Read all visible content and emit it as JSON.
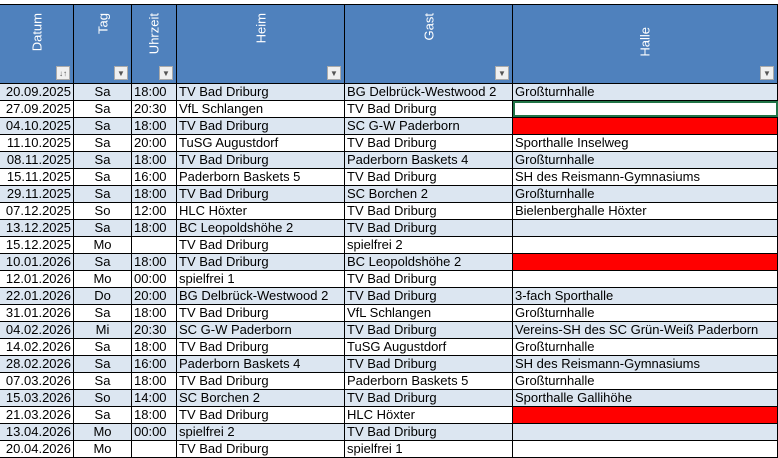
{
  "colors": {
    "header": "#4f81bd",
    "band": "#dce6f1",
    "missing_hall": "#ff0000",
    "selection": "#217346"
  },
  "headers": [
    {
      "label": "Datum",
      "filter": "sort-ascending-filter-icon",
      "glyph": "↓↑"
    },
    {
      "label": "Tag",
      "filter": "dropdown-filter-icon",
      "glyph": "▼"
    },
    {
      "label": "Uhrzeit",
      "filter": "dropdown-filter-icon",
      "glyph": "▼"
    },
    {
      "label": "Heim",
      "filter": "dropdown-filter-icon",
      "glyph": "▼"
    },
    {
      "label": "Gast",
      "filter": "dropdown-filter-icon",
      "glyph": "▼"
    },
    {
      "label": "Halle",
      "filter": "dropdown-filter-icon",
      "glyph": "▼"
    }
  ],
  "rows": [
    [
      "20.09.2025",
      "Sa",
      "18:00",
      "TV Bad Driburg",
      "BG Delbrück-Westwood 2",
      "Großturnhalle"
    ],
    [
      "27.09.2025",
      "Sa",
      "20:30",
      "VfL Schlangen",
      "TV Bad Driburg",
      ""
    ],
    [
      "04.10.2025",
      "Sa",
      "18:00",
      "TV Bad Driburg",
      "SC G-W Paderborn",
      ""
    ],
    [
      "11.10.2025",
      "Sa",
      "20:00",
      "TuSG Augustdorf",
      "TV Bad Driburg",
      "Sporthalle Inselweg"
    ],
    [
      "08.11.2025",
      "Sa",
      "18:00",
      "TV Bad Driburg",
      "Paderborn Baskets 4",
      "Großturnhalle"
    ],
    [
      "15.11.2025",
      "Sa",
      "16:00",
      "Paderborn Baskets 5",
      "TV Bad Driburg",
      "SH des Reismann-Gymnasiums"
    ],
    [
      "29.11.2025",
      "Sa",
      "18:00",
      "TV Bad Driburg",
      "SC Borchen 2",
      "Großturnhalle"
    ],
    [
      "07.12.2025",
      "So",
      "12:00",
      "HLC Höxter",
      "TV Bad Driburg",
      "Bielenberghalle Höxter"
    ],
    [
      "13.12.2025",
      "Sa",
      "18:00",
      "BC Leopoldshöhe 2",
      "TV Bad Driburg",
      ""
    ],
    [
      "15.12.2025",
      "Mo",
      "",
      "TV Bad Driburg",
      "spielfrei 2",
      ""
    ],
    [
      "10.01.2026",
      "Sa",
      "18:00",
      "TV Bad Driburg",
      "BC Leopoldshöhe 2",
      ""
    ],
    [
      "12.01.2026",
      "Mo",
      "00:00",
      "spielfrei 1",
      "TV Bad Driburg",
      ""
    ],
    [
      "22.01.2026",
      "Do",
      "20:00",
      "BG Delbrück-Westwood 2",
      "TV Bad Driburg",
      "3-fach Sporthalle"
    ],
    [
      "31.01.2026",
      "Sa",
      "18:00",
      "TV Bad Driburg",
      "VfL Schlangen",
      "Großturnhalle"
    ],
    [
      "04.02.2026",
      "Mi",
      "20:30",
      "SC G-W Paderborn",
      "TV Bad Driburg",
      "Vereins-SH des SC Grün-Weiß Paderborn"
    ],
    [
      "14.02.2026",
      "Sa",
      "18:00",
      "TV Bad Driburg",
      "TuSG Augustdorf",
      "Großturnhalle"
    ],
    [
      "28.02.2026",
      "Sa",
      "16:00",
      "Paderborn Baskets 4",
      "TV Bad Driburg",
      "SH des Reismann-Gymnasiums"
    ],
    [
      "07.03.2026",
      "Sa",
      "18:00",
      "TV Bad Driburg",
      "Paderborn Baskets 5",
      "Großturnhalle"
    ],
    [
      "15.03.2026",
      "So",
      "14:00",
      "SC Borchen 2",
      "TV Bad Driburg",
      "Sporthalle Gallihöhe"
    ],
    [
      "21.03.2026",
      "Sa",
      "18:00",
      "TV Bad Driburg",
      "HLC Höxter",
      ""
    ],
    [
      "13.04.2026",
      "Mo",
      "00:00",
      "spielfrei 2",
      "TV Bad Driburg",
      ""
    ],
    [
      "20.04.2026",
      "Mo",
      "",
      "TV Bad Driburg",
      "spielfrei 1",
      ""
    ]
  ],
  "red_hall_rows": [
    2,
    10,
    19
  ],
  "selected_cell": {
    "row": 1,
    "column": "Halle"
  }
}
